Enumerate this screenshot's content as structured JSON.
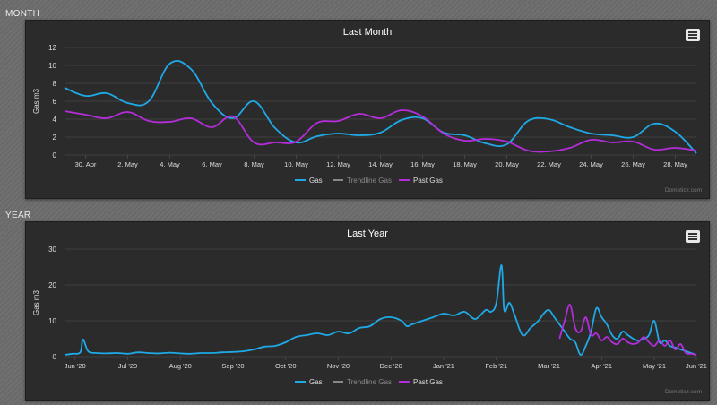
{
  "sections": {
    "month_label": "MONTH",
    "year_label": "YEAR"
  },
  "credits": "Domoticz.com",
  "legend": {
    "gas": "Gas",
    "trendline": "Trendline Gas",
    "past": "Past Gas"
  },
  "colors": {
    "gas": "#1fa9e6",
    "past": "#b52ddb",
    "trendline": "#888888",
    "panel_bg": "#2b2b2b",
    "grid": "#555555",
    "text": "#dddddd"
  },
  "icons": {
    "menu": "hamburger-menu-icon"
  },
  "chart_data": [
    {
      "type": "line",
      "title": "Last Month",
      "ylabel": "Gas m3",
      "ylim": [
        0,
        12
      ],
      "yticks": [
        0,
        2,
        4,
        6,
        8,
        10,
        12
      ],
      "xlim": [
        0,
        30
      ],
      "xticks": [
        {
          "x": 1,
          "label": "30. Apr"
        },
        {
          "x": 3,
          "label": "2. May"
        },
        {
          "x": 5,
          "label": "4. May"
        },
        {
          "x": 7,
          "label": "6. May"
        },
        {
          "x": 9,
          "label": "8. May"
        },
        {
          "x": 11,
          "label": "10. May"
        },
        {
          "x": 13,
          "label": "12. May"
        },
        {
          "x": 15,
          "label": "14. May"
        },
        {
          "x": 17,
          "label": "16. May"
        },
        {
          "x": 19,
          "label": "18. May"
        },
        {
          "x": 21,
          "label": "20. May"
        },
        {
          "x": 23,
          "label": "22. May"
        },
        {
          "x": 25,
          "label": "24. May"
        },
        {
          "x": 27,
          "label": "26. May"
        },
        {
          "x": 29,
          "label": "28. May"
        }
      ],
      "series": [
        {
          "name": "Gas",
          "color": "#1fa9e6",
          "x": [
            0,
            1,
            2,
            3,
            4,
            5,
            6,
            7,
            8,
            9,
            10,
            11,
            12,
            13,
            14,
            15,
            16,
            17,
            18,
            19,
            20,
            21,
            22,
            23,
            24,
            25,
            26,
            27,
            28,
            29,
            30
          ],
          "values": [
            7.5,
            6.6,
            6.9,
            5.8,
            6.0,
            10.2,
            9.6,
            5.8,
            4.1,
            6.0,
            3.0,
            1.4,
            2.1,
            2.4,
            2.2,
            2.5,
            3.9,
            4.1,
            2.5,
            2.2,
            1.3,
            1.2,
            3.8,
            4.0,
            3.1,
            2.4,
            2.2,
            2.0,
            3.5,
            2.6,
            0.2
          ]
        },
        {
          "name": "Trendline Gas",
          "color": "#888888",
          "x": [],
          "values": []
        },
        {
          "name": "Past Gas",
          "color": "#b52ddb",
          "x": [
            0,
            1,
            2,
            3,
            4,
            5,
            6,
            7,
            8,
            9,
            10,
            11,
            12,
            13,
            14,
            15,
            16,
            17,
            18,
            19,
            20,
            21,
            22,
            23,
            24,
            25,
            26,
            27,
            28,
            29,
            30
          ],
          "values": [
            4.9,
            4.5,
            4.1,
            4.8,
            3.8,
            3.7,
            4.1,
            3.1,
            4.3,
            1.4,
            1.4,
            1.5,
            3.6,
            3.8,
            4.6,
            4.1,
            5.0,
            4.3,
            2.4,
            1.6,
            1.8,
            1.5,
            0.5,
            0.4,
            0.8,
            1.7,
            1.4,
            1.5,
            0.6,
            0.8,
            0.5
          ]
        }
      ],
      "legend_position": "bottom"
    },
    {
      "type": "line",
      "title": "Last Year",
      "ylabel": "Gas m3",
      "ylim": [
        0,
        30
      ],
      "yticks": [
        0,
        10,
        20,
        30
      ],
      "xlim": [
        0,
        12
      ],
      "xticks": [
        {
          "x": 0.2,
          "label": "Jun '20"
        },
        {
          "x": 1.2,
          "label": "Jul '20"
        },
        {
          "x": 2.2,
          "label": "Aug '20"
        },
        {
          "x": 3.2,
          "label": "Sep '20"
        },
        {
          "x": 4.2,
          "label": "Oct '20"
        },
        {
          "x": 5.2,
          "label": "Nov '20"
        },
        {
          "x": 6.2,
          "label": "Dec '20"
        },
        {
          "x": 7.2,
          "label": "Jan '21"
        },
        {
          "x": 8.2,
          "label": "Feb '21"
        },
        {
          "x": 9.2,
          "label": "Mar '21"
        },
        {
          "x": 10.2,
          "label": "Apr '21"
        },
        {
          "x": 11.2,
          "label": "May '21"
        },
        {
          "x": 12.0,
          "label": "Jun '21"
        }
      ],
      "series": [
        {
          "name": "Gas",
          "color": "#1fa9e6",
          "x": [
            0,
            0.15,
            0.3,
            0.35,
            0.45,
            0.6,
            0.8,
            1.0,
            1.2,
            1.4,
            1.6,
            1.8,
            2.0,
            2.2,
            2.4,
            2.6,
            2.8,
            3.0,
            3.2,
            3.4,
            3.6,
            3.8,
            4.0,
            4.2,
            4.4,
            4.6,
            4.8,
            5.0,
            5.2,
            5.4,
            5.6,
            5.8,
            6.0,
            6.2,
            6.4,
            6.5,
            6.6,
            6.8,
            7.0,
            7.2,
            7.4,
            7.6,
            7.8,
            8.0,
            8.1,
            8.2,
            8.3,
            8.35,
            8.45,
            8.55,
            8.7,
            8.85,
            9.0,
            9.1,
            9.2,
            9.3,
            9.4,
            9.5,
            9.6,
            9.7,
            9.8,
            9.9,
            10.0,
            10.1,
            10.2,
            10.3,
            10.4,
            10.5,
            10.6,
            10.7,
            10.8,
            10.9,
            11.0,
            11.1,
            11.2,
            11.3,
            11.4,
            11.5,
            11.6,
            11.7,
            11.8,
            11.9,
            12.0
          ],
          "values": [
            0.5,
            0.8,
            1.2,
            4.8,
            1.5,
            1.0,
            0.9,
            1.0,
            0.8,
            1.2,
            1.0,
            0.9,
            1.1,
            0.9,
            0.8,
            1.0,
            1.0,
            1.2,
            1.3,
            1.5,
            2.0,
            2.8,
            3.0,
            4.0,
            5.5,
            6.0,
            6.5,
            6.0,
            7.0,
            6.5,
            8.0,
            8.5,
            10.5,
            11.0,
            10.0,
            8.5,
            9.0,
            10.0,
            11.0,
            12.0,
            11.5,
            12.5,
            10.5,
            13.0,
            12.5,
            15.0,
            25.5,
            13.0,
            15.0,
            11.5,
            6.0,
            8.0,
            10.0,
            12.0,
            13.0,
            11.0,
            9.0,
            7.0,
            5.0,
            4.0,
            0.5,
            3.0,
            7.0,
            13.5,
            11.0,
            9.0,
            6.0,
            5.0,
            7.0,
            6.0,
            5.0,
            4.5,
            5.0,
            6.0,
            10.0,
            4.0,
            4.5,
            3.0,
            2.5,
            2.0,
            1.5,
            1.0,
            0.5
          ]
        },
        {
          "name": "Trendline Gas",
          "color": "#888888",
          "x": [],
          "values": []
        },
        {
          "name": "Past Gas",
          "color": "#b52ddb",
          "x": [
            9.4,
            9.5,
            9.6,
            9.7,
            9.8,
            9.9,
            10.0,
            10.1,
            10.2,
            10.3,
            10.4,
            10.5,
            10.6,
            10.7,
            10.8,
            10.9,
            11.0,
            11.1,
            11.2,
            11.3,
            11.4,
            11.5,
            11.6,
            11.7,
            11.8,
            11.9,
            12.0
          ],
          "values": [
            5.0,
            10.0,
            14.5,
            8.0,
            7.0,
            11.0,
            6.0,
            6.5,
            4.5,
            5.5,
            4.0,
            3.5,
            5.0,
            4.0,
            3.5,
            4.0,
            5.5,
            4.0,
            3.0,
            4.5,
            3.0,
            4.5,
            2.0,
            3.5,
            1.0,
            0.8,
            0.5
          ]
        }
      ],
      "legend_position": "bottom"
    }
  ],
  "chart_titles": [
    "Last Month",
    "Last Year"
  ]
}
